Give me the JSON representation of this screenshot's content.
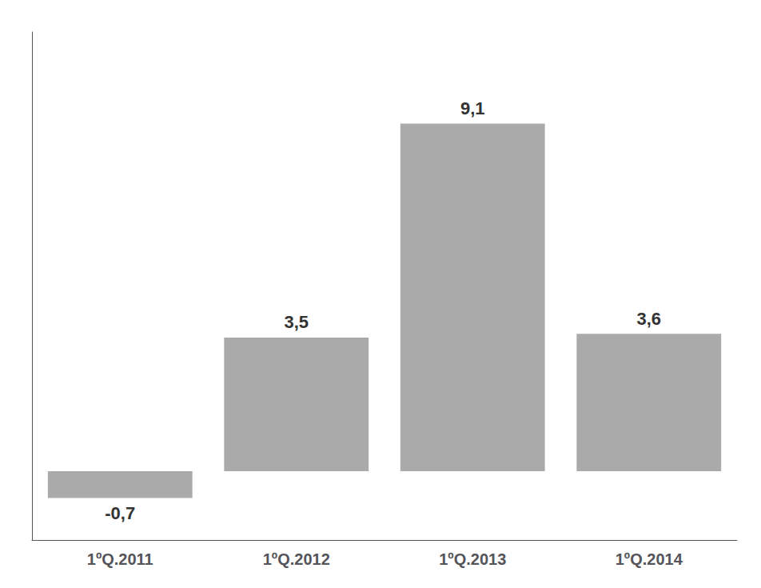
{
  "chart_data": {
    "type": "bar",
    "categories": [
      "1ºQ.2011",
      "1ºQ.2012",
      "1ºQ.2013",
      "1ºQ.2014"
    ],
    "values": [
      -0.7,
      3.5,
      9.1,
      3.6
    ],
    "value_labels": [
      "-0,7",
      "3,5",
      "9,1",
      "3,6"
    ],
    "color": "#aaaaaa",
    "ylim": [
      -1.8,
      11.5
    ],
    "data_labels": true,
    "tick_labels": "x",
    "grid": false
  }
}
